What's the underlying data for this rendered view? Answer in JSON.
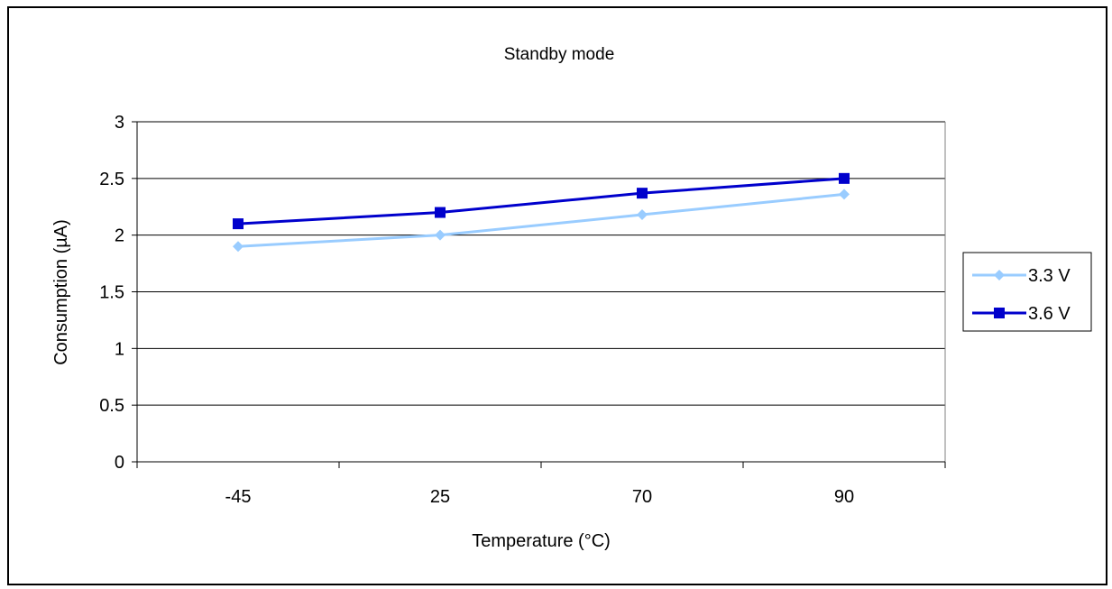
{
  "chart_data": {
    "type": "line",
    "title": "Standby mode",
    "xlabel": "Temperature (°C)",
    "ylabel": "Consumption (µA)",
    "categories": [
      "-45",
      "25",
      "70",
      "90"
    ],
    "ylim": [
      0,
      3
    ],
    "yticks": [
      "0",
      "0.5",
      "1",
      "1.5",
      "2",
      "2.5",
      "3"
    ],
    "grid": true,
    "legend_position": "right",
    "series": [
      {
        "name": "3.3 V",
        "values": [
          1.9,
          2.0,
          2.18,
          2.36
        ],
        "color": "#99ccff",
        "marker": "diamond"
      },
      {
        "name": "3.6 V",
        "values": [
          2.1,
          2.2,
          2.37,
          2.5
        ],
        "color": "#0000cc",
        "marker": "square"
      }
    ]
  }
}
